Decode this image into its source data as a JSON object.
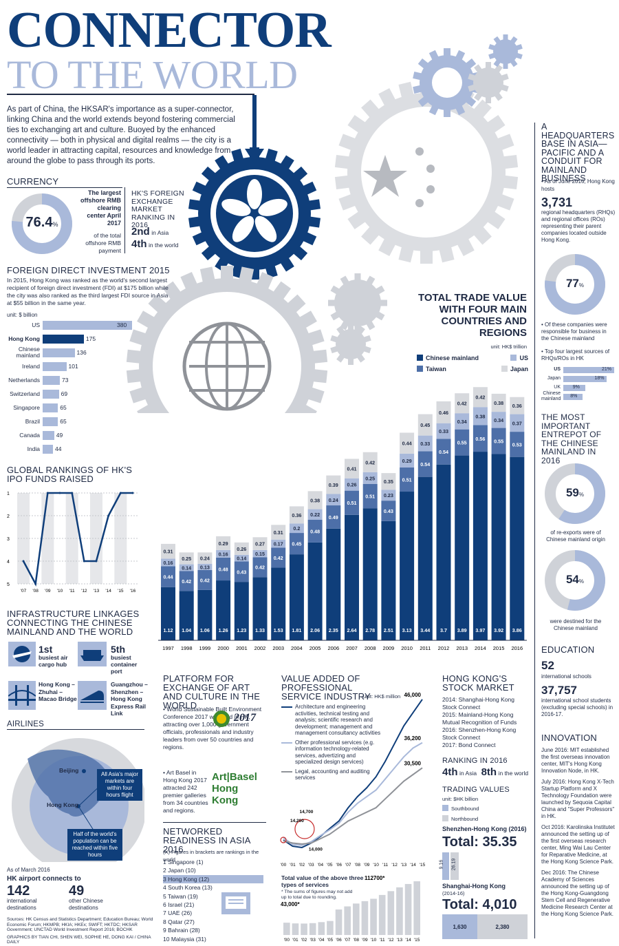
{
  "header": {
    "title_line1": "CONNECTOR",
    "title_line2": "TO THE WORLD",
    "intro": "As part of China, the HKSAR's importance as a super-connector, linking China and the world extends beyond fostering commercial ties to exchanging art and culture. Buoyed by the enhanced connectivity — both in physical and digital realms — the city is a world leader in attracting capital, resources and knowledge from around the globe to pass through its ports."
  },
  "currency": {
    "heading": "CURRENCY",
    "donut_value": "76.4",
    "donut_unit": "%",
    "donut_fraction": 0.764,
    "clearing_title": "The largest offshore RMB clearing center April 2017",
    "note": "of the total offshore RMB payment",
    "fx_heading": "HK'S FOREIGN EXCHANGE MARKET RANKING IN 2016",
    "rank_asia_num": "2nd",
    "rank_asia_txt": "in Asia",
    "rank_world_num": "4th",
    "rank_world_txt": "in the world"
  },
  "fdi": {
    "heading": "FOREIGN DIRECT INVESTMENT 2015",
    "text": "In 2015, Hong Kong was ranked as the world's second largest recipient of foreign direct investment (FDI) at $175 billion while the city was also ranked as the third largest FDI source in Asia at $55 billion in the same year.",
    "unit": "unit: $ billion"
  },
  "ipo": {
    "heading": "GLOBAL RANKINGS OF HK'S IPO FUNDS RAISED"
  },
  "infra": {
    "heading": "INFRASTRUCTURE LINKAGES CONNECTING THE CHINESE MAINLAND AND THE WORLD",
    "air_rank": "1st",
    "air_txt": "busiest air cargo hub",
    "port_rank": "5th",
    "port_txt": "busiest container port",
    "bridge_txt": "Hong Kong – Zhuhai – Macao Bridge",
    "rail_txt": "Guangzhou – Shenzhen – Hong Kong Express Rail Link"
  },
  "airlines": {
    "heading": "AIRLINES",
    "beijing": "Beijing",
    "hongkong": "Hong Kong",
    "callout1": "All Asia's major markets are within four hours flight",
    "callout2": "Half of the world's population can be reached within five hours",
    "asof": "As of March 2016",
    "connects": "HK airport connects to",
    "intl_num": "142",
    "intl_txt": "international destinations",
    "cn_num": "49",
    "cn_txt": "other Chinese destinations"
  },
  "sources": {
    "text": "Sources: HK Census and Statistics Department; Education Bureau; World Economic Forum; HKMPB; HKIA; HKEx; SWIFT; HKTDC; HKSAR Government; UNCTAD World Investment Report 2016; BOCHK",
    "credit": "GRAPHICS BY TIAN CHI, SHEN WEI, SOPHIE HE, DONG KAI / CHINA DAILY"
  },
  "trade": {
    "heading": "TOTAL TRADE VALUE WITH FOUR MAIN COUNTRIES AND REGIONS",
    "unit": "unit: HK$ trillion",
    "leg_cn": "Chinese mainland",
    "leg_us": "US",
    "leg_tw": "Taiwan",
    "leg_jp": "Japan"
  },
  "art": {
    "heading": "PLATFORM FOR EXCHANGE OF ART AND CULTURE IN THE WORLD",
    "item1": "• World Sustainable Built Environment Conference 2017 was held in HK, attracting over 1,000 government officials, professionals and industry leaders from over 50 countries and regions.",
    "item2": "• Art Basel in Hong Kong 2017 attracted 242 premier galleries from 34 countries and regions.",
    "logo_year": "2017",
    "artbasel1": "Art",
    "artbasel2": "Basel",
    "artbasel3": "Hong Kong"
  },
  "networked": {
    "heading": "NETWORKED READINESS IN ASIA 2016",
    "note": "(X) Figures in brackets are rankings in the world",
    "items": [
      "1 Singapore (1)",
      "2 Japan (10)",
      "3 Hong Kong (12)",
      "4 South Korea (13)",
      "5 Taiwan (19)",
      "6 Israel (21)",
      "7 UAE (26)",
      "8 Qatar (27)",
      "9 Bahrain (28)",
      "10 Malaysia (31)"
    ]
  },
  "services": {
    "heading": "VALUE ADDED OF PROFESSIONAL SERVICE INDUSTRY",
    "unit": "unit: HK$ million",
    "leg1": "Architecture and engineering activities, technical testing and analysis; scientific research and development; management and management consultancy activities",
    "leg2": "Other professional services (e.g. information technology-related services, advertizing and specialized design services)",
    "leg3": "Legal, accounting and auditing services",
    "total_heading": "Total value of the above three types of services",
    "total_note": "* The sums of figures may not add up to total due to rounding.",
    "total_start": "43,000*",
    "total_end": "112700*"
  },
  "stock": {
    "heading": "HONG KONG'S STOCK MARKET",
    "m2014": "2014: Shanghai-Hong Kong Stock Connect",
    "m2015": "2015: Mainland-Hong Kong Mutual Recognition of Funds",
    "m2016": "2016: Shenzhen-Hong Kong Stock Connect",
    "m2017": "2017: Bond Connect",
    "rank_heading": "RANKING IN 2016",
    "rank_asia_num": "4th",
    "rank_asia_txt": "in Asia",
    "rank_world_num": "8th",
    "rank_world_txt": "in the world",
    "tv_heading": "TRADING VALUES",
    "tv_unit": "unit: $HK billion",
    "south": "Southbound",
    "north": "Northbound",
    "sz_title": "Shenzhen-Hong Kong (2016)",
    "sz_total": "Total: 35.35",
    "sz_south": "9.16",
    "sz_north": "26.19",
    "sh_title": "Shanghai-Hong Kong",
    "sh_sub": "(2014-16)",
    "sh_total": "Total: 4,010",
    "sh_south": "1,630",
    "sh_north": "2,380"
  },
  "hq": {
    "heading": "A HEADQUARTERS BASE IN ASIA—PACIFIC AND A CONDUIT FOR MAINLAND BUSINESS",
    "asof": "• As of June 2016, Hong Kong hosts",
    "num": "3,731",
    "desc": "regional headquarters (RHQs) and regional offices (ROs) representing their parent companies located outside Hong Kong.",
    "donut": "77",
    "donut_fraction": 0.77,
    "note1": "• Of these companies were responsible for business in the Chinese mainland",
    "note2": "• Top four largest sources of RHQs/ROs in HK",
    "sources": [
      {
        "name": "US",
        "pct": "21%",
        "v": 21
      },
      {
        "name": "Japan",
        "pct": "18%",
        "v": 18
      },
      {
        "name": "UK",
        "pct": "9%",
        "v": 9
      },
      {
        "name": "Chinese mainland",
        "pct": "8%",
        "v": 8
      }
    ]
  },
  "entrepot": {
    "heading": "THE MOST IMPORTANT ENTREPOT OF THE CHINESE MAINLAND IN 2016",
    "d1": "59",
    "d1_fraction": 0.59,
    "d1_txt": "of re-exports were of Chinese mainland origin",
    "d2": "54",
    "d2_fraction": 0.54,
    "d2_txt": "were destined for the Chinese mainland"
  },
  "education": {
    "heading": "EDUCATION",
    "schools": "52",
    "schools_txt": "international schools",
    "students": "37,757",
    "students_txt": "international school students (excluding special schools) in 2016-17."
  },
  "innovation": {
    "heading": "INNOVATION",
    "items": [
      "June 2016: MIT established the first overseas innovation center, MIT's Hong Kong Innovation Node, in HK.",
      "July 2016: Hong Kong X-Tech Startup Platform and X Technology Foundation were launched by Sequoia Capital China and \"Super Professors\" in HK.",
      "Oct 2016: Karolinska Institutet announced the setting up of the first overseas research center, Ming Wai Lau Center for Reparative Medicine, at the Hong Kong Science Park.",
      "Dec 2016: The Chinese Academy of Sciences announced the setting up of the Hong Kong-Guangdong Stem Cell and Regenerative Medicine Research Center at the Hong Kong Science Park."
    ]
  },
  "colors": {
    "navy": "#0f3e7a",
    "mid": "#4d6fa8",
    "light": "#a9b9da",
    "grey": "#cfd2d8"
  },
  "chart_data": [
    {
      "type": "bar",
      "id": "fdi",
      "categories": [
        "US",
        "Hong Kong",
        "Chinese mainland",
        "Ireland",
        "Netherlands",
        "Switzerland",
        "Singapore",
        "Brazil",
        "Canada",
        "India"
      ],
      "values": [
        380,
        175,
        136,
        101,
        73,
        69,
        65,
        65,
        49,
        44
      ],
      "ylabel": "unit: $ billion"
    },
    {
      "type": "line",
      "id": "ipo",
      "x": [
        "'07",
        "'08",
        "'09",
        "'10",
        "'11",
        "'12",
        "'13",
        "'14",
        "'15",
        "'16"
      ],
      "values": [
        4,
        5,
        1,
        1,
        1,
        4,
        4,
        2,
        1,
        1
      ],
      "y_ticks": [
        "1",
        "2",
        "3",
        "4",
        "5"
      ],
      "ylim": [
        1,
        5
      ]
    },
    {
      "type": "bar",
      "id": "trade",
      "stacked": true,
      "categories": [
        "1997",
        "1998",
        "1999",
        "2000",
        "2001",
        "2002",
        "2003",
        "2004",
        "2005",
        "2006",
        "2007",
        "2008",
        "2009",
        "2010",
        "2011",
        "2012",
        "2013",
        "2014",
        "2015",
        "2016"
      ],
      "series": [
        {
          "name": "Chinese mainland",
          "color": "#0f3e7a",
          "values": [
            "1.12",
            "1.04",
            "1.06",
            "1.26",
            "1.23",
            "1.33",
            "1.53",
            "1.81",
            "2.06",
            "2.35",
            "2.64",
            "2.78",
            "2.51",
            "3.13",
            "3.44",
            "3.7",
            "3.89",
            "3.97",
            "3.92",
            "3.86"
          ]
        },
        {
          "name": "Taiwan",
          "color": "#4d6fa8",
          "values": [
            "0.44",
            "0.42",
            "0.42",
            "0.48",
            "0.43",
            "0.42",
            "0.42",
            "0.45",
            "0.48",
            "0.49",
            "0.51",
            "0.51",
            "0.43",
            "0.51",
            "0.54",
            "0.54",
            "0.55",
            "0.56",
            "0.55",
            "0.53"
          ]
        },
        {
          "name": "US",
          "color": "#a9b9da",
          "values": [
            "0.16",
            "0.14",
            "0.13",
            "0.16",
            "0.14",
            "0.15",
            "0.17",
            "0.2",
            "0.22",
            "0.24",
            "0.26",
            "0.25",
            "0.23",
            "0.29",
            "0.33",
            "0.33",
            "0.34",
            "0.38",
            "0.34",
            "0.37"
          ]
        },
        {
          "name": "Japan",
          "color": "#d7d9dd",
          "values": [
            "0.31",
            "0.25",
            "0.24",
            "0.29",
            "0.26",
            "0.27",
            "0.31",
            "0.36",
            "0.38",
            "0.39",
            "0.41",
            "0.42",
            "0.35",
            "0.44",
            "0.45",
            "0.46",
            "0.42",
            "0.42",
            "0.38",
            "0.36"
          ]
        }
      ]
    },
    {
      "type": "line",
      "id": "services",
      "x": [
        "'00",
        "'01",
        "'02",
        "'03",
        "'04",
        "'05",
        "'06",
        "'07",
        "'08",
        "'09",
        "'10",
        "'11",
        "'12",
        "'13",
        "'14",
        "'15"
      ],
      "series": [
        {
          "name": "Architecture and engineering",
          "values": [
            14200,
            12800,
            12500,
            13500,
            15000,
            16800,
            18500,
            21500,
            24000,
            26000,
            28500,
            32000,
            36000,
            40000,
            43000,
            46000
          ],
          "end_label": "46,000"
        },
        {
          "name": "Other professional services",
          "values": [
            14700,
            13200,
            13000,
            13800,
            15200,
            16500,
            18000,
            20500,
            22500,
            24000,
            25500,
            28000,
            30500,
            33000,
            35000,
            36200
          ],
          "end_label": "36,200"
        },
        {
          "name": "Legal, accounting and auditing services",
          "values": [
            14000,
            13500,
            13300,
            13500,
            14500,
            15500,
            17000,
            18500,
            19500,
            20500,
            21500,
            23500,
            25500,
            27500,
            29000,
            30500
          ],
          "end_label": "30,500"
        }
      ],
      "annotations": [
        "14,200",
        "14,700",
        "14,000"
      ]
    },
    {
      "type": "bar",
      "id": "services_total",
      "categories": [
        "'00",
        "'01",
        "'02",
        "'03",
        "'04",
        "'05",
        "'06",
        "'07",
        "'08",
        "'09",
        "'10",
        "'11",
        "'12",
        "'13",
        "'14",
        "'15"
      ],
      "values": [
        43000,
        40500,
        40000,
        41500,
        45000,
        49000,
        53500,
        60000,
        66000,
        71000,
        76000,
        84000,
        92000,
        100000,
        107000,
        112700
      ]
    }
  ]
}
